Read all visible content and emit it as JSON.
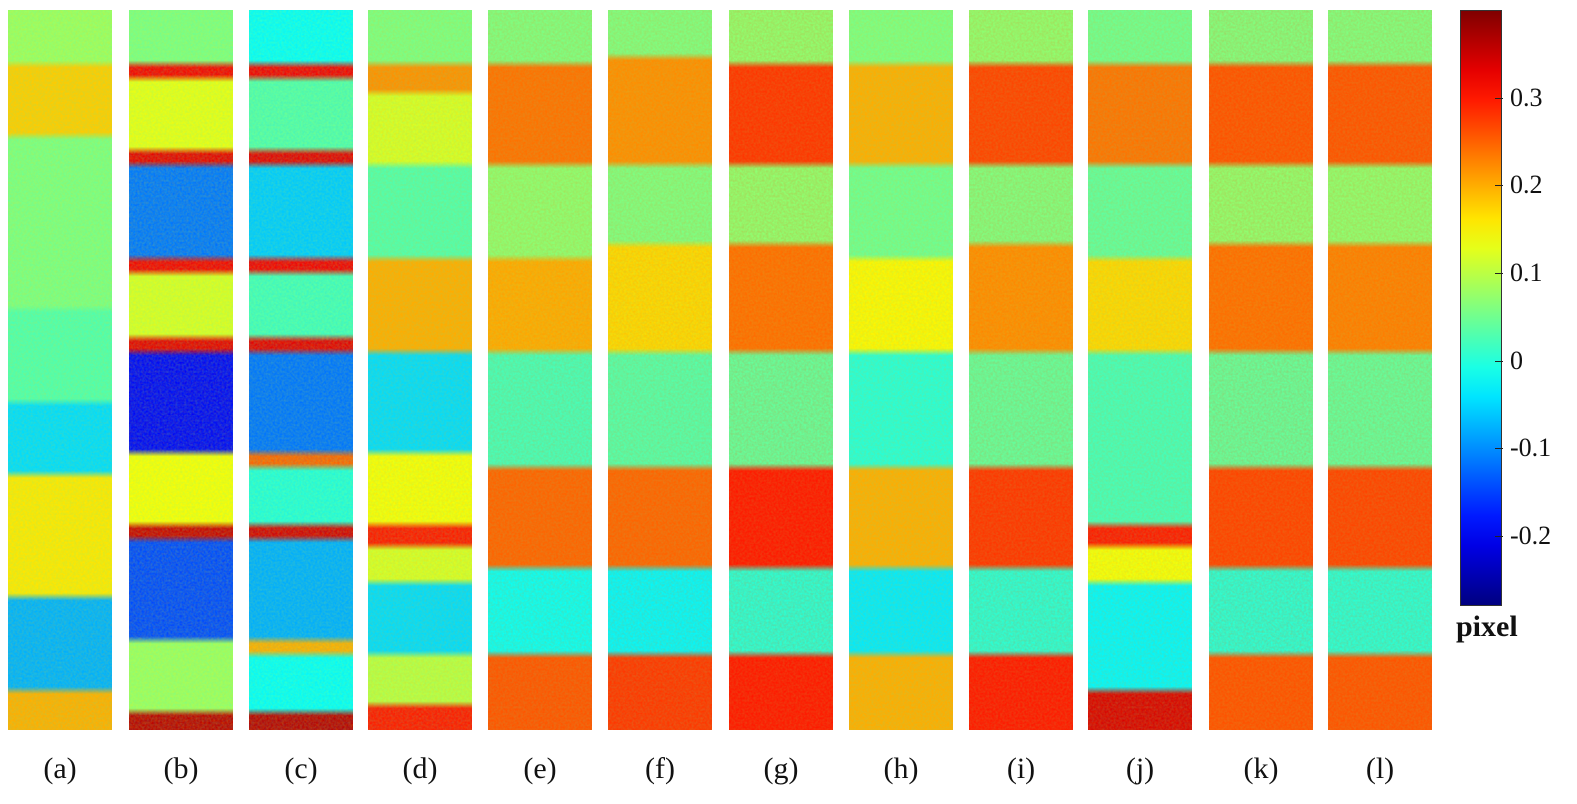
{
  "chart_data": {
    "type": "heatmap",
    "panels": [
      {
        "label": "(a)",
        "overall": 0.06,
        "bands": [
          [
            0.0,
            0.08
          ],
          [
            0.08,
            0.18
          ],
          [
            0.18,
            0.06
          ],
          [
            0.42,
            0.03
          ],
          [
            0.55,
            -0.05
          ],
          [
            0.65,
            0.16
          ],
          [
            0.82,
            -0.08
          ],
          [
            0.95,
            0.2
          ]
        ]
      },
      {
        "label": "(b)",
        "overall": 0.05,
        "bands": [
          [
            0.0,
            0.06
          ],
          [
            0.08,
            0.32
          ],
          [
            0.1,
            0.13
          ],
          [
            0.2,
            0.33
          ],
          [
            0.22,
            -0.12
          ],
          [
            0.35,
            0.32
          ],
          [
            0.37,
            0.12
          ],
          [
            0.46,
            0.33
          ],
          [
            0.48,
            -0.2
          ],
          [
            0.62,
            0.14
          ],
          [
            0.72,
            0.35
          ],
          [
            0.74,
            -0.15
          ],
          [
            0.88,
            0.08
          ],
          [
            0.98,
            0.36
          ]
        ]
      },
      {
        "label": "(c)",
        "overall": 0.0,
        "bands": [
          [
            0.0,
            -0.02
          ],
          [
            0.08,
            0.32
          ],
          [
            0.1,
            0.03
          ],
          [
            0.2,
            0.33
          ],
          [
            0.22,
            -0.06
          ],
          [
            0.35,
            0.32
          ],
          [
            0.37,
            0.02
          ],
          [
            0.46,
            0.33
          ],
          [
            0.48,
            -0.12
          ],
          [
            0.62,
            0.25
          ],
          [
            0.64,
            0.0
          ],
          [
            0.72,
            0.34
          ],
          [
            0.74,
            -0.08
          ],
          [
            0.88,
            0.2
          ],
          [
            0.9,
            -0.02
          ],
          [
            0.98,
            0.36
          ]
        ]
      },
      {
        "label": "(d)",
        "overall": 0.08,
        "bands": [
          [
            0.0,
            0.06
          ],
          [
            0.08,
            0.22
          ],
          [
            0.12,
            0.12
          ],
          [
            0.22,
            0.03
          ],
          [
            0.35,
            0.2
          ],
          [
            0.48,
            -0.05
          ],
          [
            0.62,
            0.14
          ],
          [
            0.72,
            0.3
          ],
          [
            0.75,
            0.12
          ],
          [
            0.8,
            -0.05
          ],
          [
            0.9,
            0.1
          ],
          [
            0.97,
            0.3
          ]
        ]
      },
      {
        "label": "(e)",
        "overall": 0.12,
        "bands": [
          [
            0.0,
            0.06
          ],
          [
            0.08,
            0.24
          ],
          [
            0.22,
            0.07
          ],
          [
            0.35,
            0.2
          ],
          [
            0.48,
            0.02
          ],
          [
            0.64,
            0.25
          ],
          [
            0.78,
            -0.02
          ],
          [
            0.9,
            0.26
          ]
        ]
      },
      {
        "label": "(f)",
        "overall": 0.12,
        "bands": [
          [
            0.0,
            0.06
          ],
          [
            0.07,
            0.22
          ],
          [
            0.22,
            0.06
          ],
          [
            0.33,
            0.17
          ],
          [
            0.48,
            0.03
          ],
          [
            0.64,
            0.25
          ],
          [
            0.78,
            -0.03
          ],
          [
            0.9,
            0.28
          ]
        ]
      },
      {
        "label": "(g)",
        "overall": 0.15,
        "bands": [
          [
            0.0,
            0.07
          ],
          [
            0.08,
            0.28
          ],
          [
            0.22,
            0.07
          ],
          [
            0.33,
            0.24
          ],
          [
            0.48,
            0.04
          ],
          [
            0.64,
            0.3
          ],
          [
            0.78,
            0.0
          ],
          [
            0.9,
            0.3
          ]
        ]
      },
      {
        "label": "(h)",
        "overall": 0.08,
        "bands": [
          [
            0.0,
            0.06
          ],
          [
            0.08,
            0.2
          ],
          [
            0.22,
            0.05
          ],
          [
            0.35,
            0.15
          ],
          [
            0.48,
            0.0
          ],
          [
            0.64,
            0.2
          ],
          [
            0.78,
            -0.04
          ],
          [
            0.9,
            0.2
          ]
        ]
      },
      {
        "label": "(i)",
        "overall": 0.14,
        "bands": [
          [
            0.0,
            0.07
          ],
          [
            0.08,
            0.27
          ],
          [
            0.22,
            0.06
          ],
          [
            0.33,
            0.22
          ],
          [
            0.48,
            0.04
          ],
          [
            0.64,
            0.28
          ],
          [
            0.78,
            0.0
          ],
          [
            0.9,
            0.3
          ]
        ]
      },
      {
        "label": "(j)",
        "overall": 0.1,
        "bands": [
          [
            0.0,
            0.05
          ],
          [
            0.08,
            0.24
          ],
          [
            0.22,
            0.04
          ],
          [
            0.35,
            0.17
          ],
          [
            0.48,
            0.02
          ],
          [
            0.72,
            0.3
          ],
          [
            0.75,
            0.14
          ],
          [
            0.8,
            -0.03
          ],
          [
            0.95,
            0.34
          ]
        ]
      },
      {
        "label": "(k)",
        "overall": 0.15,
        "bands": [
          [
            0.0,
            0.06
          ],
          [
            0.08,
            0.26
          ],
          [
            0.22,
            0.07
          ],
          [
            0.33,
            0.24
          ],
          [
            0.48,
            0.04
          ],
          [
            0.64,
            0.27
          ],
          [
            0.78,
            0.0
          ],
          [
            0.9,
            0.26
          ]
        ]
      },
      {
        "label": "(l)",
        "overall": 0.14,
        "bands": [
          [
            0.0,
            0.06
          ],
          [
            0.08,
            0.26
          ],
          [
            0.22,
            0.07
          ],
          [
            0.33,
            0.23
          ],
          [
            0.48,
            0.04
          ],
          [
            0.64,
            0.27
          ],
          [
            0.78,
            0.0
          ],
          [
            0.9,
            0.26
          ]
        ]
      }
    ],
    "colorbar": {
      "range": [
        -0.28,
        0.4
      ],
      "ticks": [
        "0.3",
        "0.2",
        "0.1",
        "0",
        "-0.1",
        "-0.2"
      ],
      "tick_values": [
        0.3,
        0.2,
        0.1,
        0,
        -0.1,
        -0.2
      ],
      "unit": "pixel",
      "colormap": "jet"
    }
  }
}
